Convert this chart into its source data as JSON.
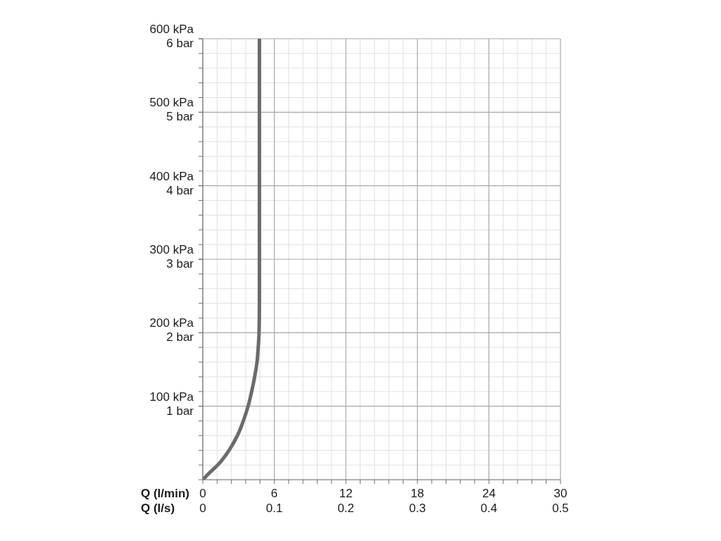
{
  "chart_data": {
    "type": "line",
    "xlabel": "Q (l/min)",
    "x2label": "Q (l/s)",
    "x": [
      0,
      0.6,
      1.25,
      2.2,
      2.9,
      3.4,
      3.8,
      4.1,
      4.35,
      4.55,
      4.65,
      4.72,
      4.75,
      4.75
    ],
    "series": [
      {
        "color": "#6b6b6b",
        "values": [
          0,
          10,
          20,
          40,
          60,
          80,
          100,
          120,
          140,
          160,
          180,
          200,
          240,
          600
        ]
      }
    ],
    "xlim": [
      0,
      30
    ],
    "xticks": [
      0,
      {
        "value": 1.2,
        "label": null
      },
      {
        "value": 2.4,
        "label": null
      },
      {
        "value": 3.6,
        "label": null
      },
      {
        "value": 4.8,
        "label": null
      },
      6,
      {
        "value": 7.2,
        "label": null
      },
      {
        "value": 8.4,
        "label": null
      },
      {
        "value": 9.6,
        "label": null
      },
      {
        "value": 10.8,
        "label": null
      },
      12,
      {
        "value": 13.2,
        "label": null
      },
      {
        "value": 14.4,
        "label": null
      },
      {
        "value": 15.6,
        "label": null
      },
      {
        "value": 16.8,
        "label": null
      },
      18,
      {
        "value": 19.2,
        "label": null
      },
      {
        "value": 20.4,
        "label": null
      },
      {
        "value": 21.6,
        "label": null
      },
      {
        "value": 22.8,
        "label": null
      },
      24,
      {
        "value": 25.2,
        "label": null
      },
      {
        "value": 26.4,
        "label": null
      },
      {
        "value": 27.6,
        "label": null
      },
      {
        "value": 28.8,
        "label": null
      },
      30
    ],
    "x2lim": [
      0,
      0.5
    ],
    "x2ticks": [
      0,
      0.1,
      0.2,
      0.3,
      0.4,
      0.5
    ],
    "ylim": [
      0,
      600
    ],
    "yticks": [
      {
        "value": 0,
        "label": null
      },
      {
        "value": 20,
        "label": null
      },
      {
        "value": 40,
        "label": null
      },
      {
        "value": 60,
        "label": null
      },
      {
        "value": 80,
        "label": null
      },
      {
        "value": 100,
        "label": "100 kPa"
      },
      {
        "value": 120,
        "label": null
      },
      {
        "value": 140,
        "label": null
      },
      {
        "value": 160,
        "label": null
      },
      {
        "value": 180,
        "label": null
      },
      {
        "value": 200,
        "label": "200 kPa"
      },
      {
        "value": 220,
        "label": null
      },
      {
        "value": 240,
        "label": null
      },
      {
        "value": 260,
        "label": null
      },
      {
        "value": 280,
        "label": null
      },
      {
        "value": 300,
        "label": "300 kPa"
      },
      {
        "value": 320,
        "label": null
      },
      {
        "value": 340,
        "label": null
      },
      {
        "value": 360,
        "label": null
      },
      {
        "value": 380,
        "label": null
      },
      {
        "value": 400,
        "label": "400 kPa"
      },
      {
        "value": 420,
        "label": null
      },
      {
        "value": 440,
        "label": null
      },
      {
        "value": 460,
        "label": null
      },
      {
        "value": 480,
        "label": null
      },
      {
        "value": 500,
        "label": "500 kPa"
      },
      {
        "value": 520,
        "label": null
      },
      {
        "value": 540,
        "label": null
      },
      {
        "value": 560,
        "label": null
      },
      {
        "value": 580,
        "label": null
      },
      {
        "value": 600,
        "label": "600 kPa"
      }
    ],
    "y2lim": [
      0,
      6
    ],
    "y2ticks": [
      {
        "value": 1,
        "label": "1 bar"
      },
      {
        "value": 2,
        "label": "2 bar"
      },
      {
        "value": 3,
        "label": "3 bar"
      },
      {
        "value": 4,
        "label": "4 bar"
      },
      {
        "value": 5,
        "label": "5 bar"
      },
      {
        "value": 6,
        "label": "6 bar"
      }
    ],
    "grid": true,
    "line_style": "solid"
  }
}
